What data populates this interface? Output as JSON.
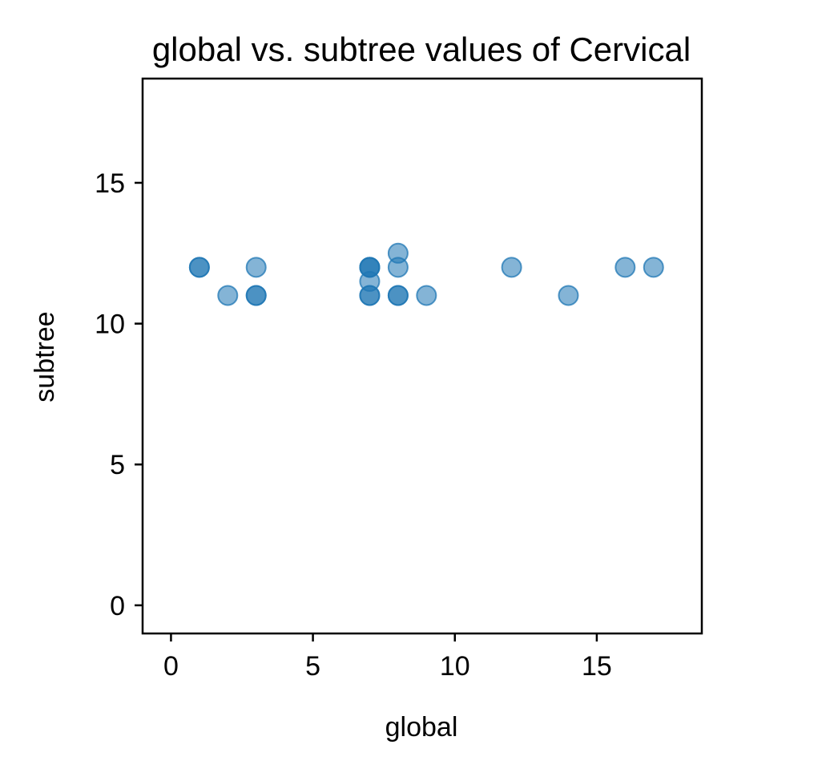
{
  "chart_data": {
    "type": "scatter",
    "title": "global vs. subtree values of Cervical",
    "xlabel": "global",
    "ylabel": "subtree",
    "xlim": [
      -1,
      18.7
    ],
    "ylim": [
      -1,
      18.7
    ],
    "xticks": [
      0,
      5,
      10,
      15
    ],
    "yticks": [
      0,
      5,
      10,
      15
    ],
    "xtick_labels": [
      "0",
      "5",
      "10",
      "15"
    ],
    "ytick_labels": [
      "0",
      "5",
      "10",
      "15"
    ],
    "grid": false,
    "marker_color": "#1f77b4",
    "marker_alpha": 0.55,
    "points": [
      {
        "x": 1,
        "y": 12
      },
      {
        "x": 1,
        "y": 12
      },
      {
        "x": 2,
        "y": 11
      },
      {
        "x": 3,
        "y": 12
      },
      {
        "x": 3,
        "y": 11
      },
      {
        "x": 3,
        "y": 11
      },
      {
        "x": 7,
        "y": 12
      },
      {
        "x": 7,
        "y": 12
      },
      {
        "x": 7,
        "y": 12
      },
      {
        "x": 7,
        "y": 11.5
      },
      {
        "x": 7,
        "y": 11
      },
      {
        "x": 7,
        "y": 11
      },
      {
        "x": 8,
        "y": 12.5
      },
      {
        "x": 8,
        "y": 12
      },
      {
        "x": 8,
        "y": 11
      },
      {
        "x": 8,
        "y": 11
      },
      {
        "x": 9,
        "y": 11
      },
      {
        "x": 12,
        "y": 12
      },
      {
        "x": 14,
        "y": 11
      },
      {
        "x": 16,
        "y": 12
      },
      {
        "x": 17,
        "y": 12
      }
    ]
  }
}
